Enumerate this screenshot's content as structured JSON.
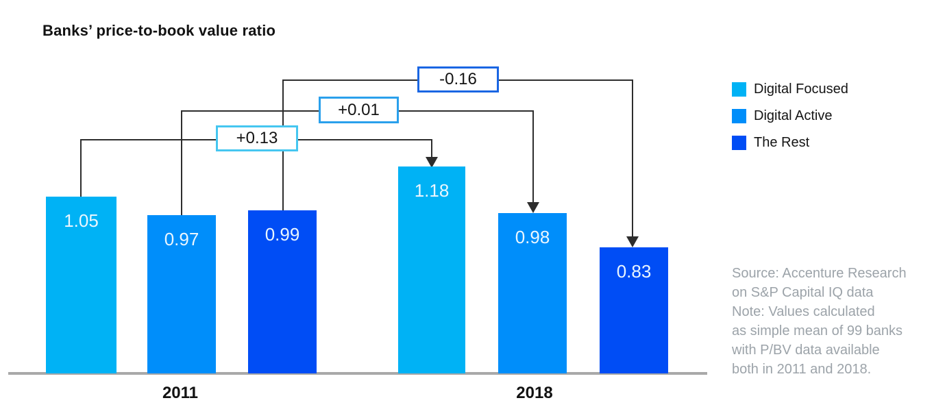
{
  "title": "Banks’ price-to-book value ratio",
  "chart_data": {
    "type": "bar",
    "title": "Banks’ price-to-book value ratio",
    "categories": [
      "2011",
      "2018"
    ],
    "series": [
      {
        "name": "Digital Focused",
        "color": "#00B2F5",
        "values": [
          1.05,
          1.18
        ],
        "change": 0.13,
        "change_label": "+0.13"
      },
      {
        "name": "Digital Active",
        "color": "#008EFA",
        "values": [
          0.97,
          0.98
        ],
        "change": 0.01,
        "change_label": "+0.01"
      },
      {
        "name": "The Rest",
        "color": "#004DF5",
        "values": [
          0.99,
          0.83
        ],
        "change": -0.16,
        "change_label": "-0.16"
      }
    ],
    "ylim": [
      0.28,
      1.3
    ],
    "grid": false,
    "legend_position": "top-right",
    "annotations": "black connector lines run from the top of each 2011 bar, through a labeled change box, to a downward arrow on the matching 2018 bar"
  },
  "legend": {
    "items": [
      {
        "label": "Digital Focused",
        "color": "#00B2F5"
      },
      {
        "label": "Digital Active",
        "color": "#008EFA"
      },
      {
        "label": "The Rest",
        "color": "#004DF5"
      }
    ]
  },
  "source_note": {
    "lines": [
      "Source: Accenture Research",
      "on S&P Capital IQ data",
      "Note: Values calculated",
      "as simple mean of 99 banks",
      "with P/BV data available",
      "both in 2011 and 2018."
    ]
  },
  "colors": {
    "digital_focused": "#00B2F5",
    "digital_active": "#008EFA",
    "the_rest": "#004DF5",
    "delta_border_focused": "#45C6F0",
    "delta_border_active": "#2AA0EC",
    "delta_border_rest": "#1A66E3",
    "connector_line": "#2D2D2D",
    "baseline": "#A9A9A9",
    "note_text": "#9CA3A9"
  }
}
